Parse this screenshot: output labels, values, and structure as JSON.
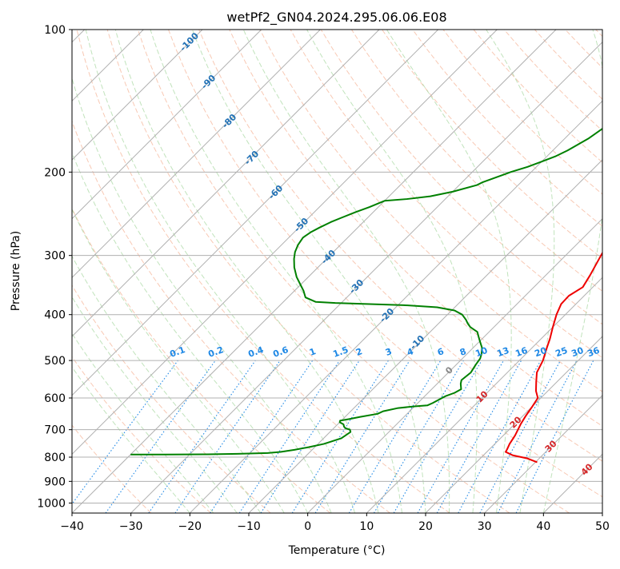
{
  "chart_data": {
    "type": "line",
    "title": "wetPf2_GN04.2024.295.06.06.E08",
    "xlabel": "Temperature (°C)",
    "ylabel": "Pressure (hPa)",
    "xlim": [
      -40,
      50
    ],
    "ylim": [
      1050,
      100
    ],
    "y_scale": "log",
    "x_ticks": [
      -40,
      -30,
      -20,
      -10,
      0,
      10,
      20,
      30,
      40,
      50
    ],
    "x_tick_labels": [
      "−40",
      "−30",
      "−20",
      "−10",
      "0",
      "10",
      "20",
      "30",
      "40",
      "50"
    ],
    "y_ticks": [
      1000,
      900,
      800,
      700,
      600,
      500,
      400,
      300,
      200,
      100
    ],
    "y_tick_labels": [
      "1000",
      "900",
      "800",
      "700",
      "600",
      "500",
      "400",
      "300",
      "200",
      "100"
    ],
    "grid": true,
    "skew": "skew-T log-p",
    "colors": {
      "temperature": "#ee0000",
      "dewpoint": "#008000",
      "isotherm": "#b0b0b0",
      "dry_adiabat": "#f4a582",
      "moist_adiabat": "#a6d7a0",
      "mixing_ratio": "#1e88e5",
      "wet_bulb_label": "#2171b5",
      "temp_label": "#d62728"
    },
    "series": [
      {
        "role": "temperature",
        "points": [
          [
            30.3,
            820
          ],
          [
            28,
            805
          ],
          [
            25,
            793
          ],
          [
            23.2,
            780
          ],
          [
            23,
            770
          ],
          [
            22.5,
            750
          ],
          [
            22,
            720
          ],
          [
            21,
            680
          ],
          [
            20.5,
            655
          ],
          [
            20,
            625
          ],
          [
            19.5,
            600
          ],
          [
            18,
            580
          ],
          [
            16.5,
            555
          ],
          [
            15,
            530
          ],
          [
            14,
            500
          ],
          [
            12.5,
            470
          ],
          [
            11.5,
            450
          ],
          [
            10,
            425
          ],
          [
            8.5,
            400
          ],
          [
            7.5,
            380
          ],
          [
            7.4,
            365
          ],
          [
            8.3,
            350
          ],
          [
            7.5,
            330
          ],
          [
            6,
            300
          ],
          [
            4.5,
            270
          ],
          [
            3.5,
            250
          ],
          [
            3.8,
            235
          ],
          [
            4.5,
            215
          ],
          [
            4.2,
            195
          ],
          [
            3.9,
            170
          ],
          [
            3.8,
            150
          ],
          [
            4.2,
            140
          ],
          [
            4.8,
            130
          ],
          [
            5.8,
            122
          ],
          [
            8,
            115
          ],
          [
            10,
            108
          ],
          [
            11,
            103
          ],
          [
            11.8,
            100
          ]
        ]
      },
      {
        "role": "dewpoint",
        "points": [
          [
            -40,
            790
          ],
          [
            -34,
            790
          ],
          [
            -27,
            789
          ],
          [
            -22,
            787
          ],
          [
            -17,
            784
          ],
          [
            -15,
            780
          ],
          [
            -13,
            772
          ],
          [
            -11,
            762
          ],
          [
            -9,
            750
          ],
          [
            -7,
            730
          ],
          [
            -6.5,
            708
          ],
          [
            -7,
            700
          ],
          [
            -8,
            695
          ],
          [
            -8.5,
            690
          ],
          [
            -9,
            682
          ],
          [
            -10,
            675
          ],
          [
            -10.2,
            670
          ],
          [
            -9,
            665
          ],
          [
            -7.5,
            658
          ],
          [
            -5,
            648
          ],
          [
            -4.5,
            640
          ],
          [
            -2.5,
            630
          ],
          [
            0,
            625
          ],
          [
            2,
            622
          ],
          [
            2.5,
            615
          ],
          [
            3,
            605
          ],
          [
            3.5,
            595
          ],
          [
            4.5,
            585
          ],
          [
            5,
            575
          ],
          [
            4,
            560
          ],
          [
            3.5,
            550
          ],
          [
            3.8,
            530
          ],
          [
            3.3,
            510
          ],
          [
            3,
            495
          ],
          [
            2.5,
            485
          ],
          [
            1.5,
            470
          ],
          [
            0,
            455
          ],
          [
            -1,
            445
          ],
          [
            -2,
            435
          ],
          [
            -4,
            425
          ],
          [
            -5,
            418
          ],
          [
            -6,
            410
          ],
          [
            -7.5,
            400
          ],
          [
            -9.5,
            392
          ],
          [
            -13,
            386
          ],
          [
            -19,
            382
          ],
          [
            -25,
            380
          ],
          [
            -31,
            378
          ],
          [
            -34.5,
            376
          ],
          [
            -37,
            368
          ],
          [
            -38.5,
            356
          ],
          [
            -40,
            346
          ],
          [
            -42,
            333
          ],
          [
            -44,
            318
          ],
          [
            -45.5,
            305
          ],
          [
            -46.5,
            295
          ],
          [
            -47.2,
            285
          ],
          [
            -47.6,
            275
          ],
          [
            -47.2,
            268
          ],
          [
            -46.5,
            262
          ],
          [
            -45.5,
            255
          ],
          [
            -44.5,
            250
          ],
          [
            -43,
            243
          ],
          [
            -41.5,
            237
          ],
          [
            -40,
            230
          ],
          [
            -36.5,
            228
          ],
          [
            -33,
            225
          ],
          [
            -30,
            220
          ],
          [
            -27,
            213
          ],
          [
            -26.5,
            210
          ],
          [
            -25,
            205
          ],
          [
            -23.5,
            200
          ],
          [
            -21.5,
            195
          ],
          [
            -20,
            190
          ],
          [
            -18.5,
            185
          ],
          [
            -17.5,
            180
          ],
          [
            -16,
            170
          ],
          [
            -15.3,
            162
          ],
          [
            -14.5,
            155
          ],
          [
            -13.5,
            147
          ],
          [
            -12.6,
            140
          ],
          [
            -12.5,
            132
          ],
          [
            -12.4,
            125
          ],
          [
            -13.2,
            119
          ],
          [
            -13.7,
            113
          ],
          [
            -12.3,
            109
          ],
          [
            -10.5,
            106
          ],
          [
            -8.5,
            103
          ],
          [
            -7,
            100
          ]
        ]
      }
    ],
    "wet_bulb_labels": [
      "-100",
      "-90",
      "-80",
      "-70",
      "-60",
      "-50",
      "-40",
      "-30",
      "-20",
      "-10",
      "0",
      "10",
      "20",
      "30",
      "40"
    ],
    "mixing_ratio_labels": [
      "0.1",
      "0.2",
      "0.4",
      "0.6",
      "1",
      "1.5",
      "2",
      "3",
      "4",
      "6",
      "8",
      "10",
      "13",
      "16",
      "20",
      "25",
      "30",
      "36"
    ]
  }
}
